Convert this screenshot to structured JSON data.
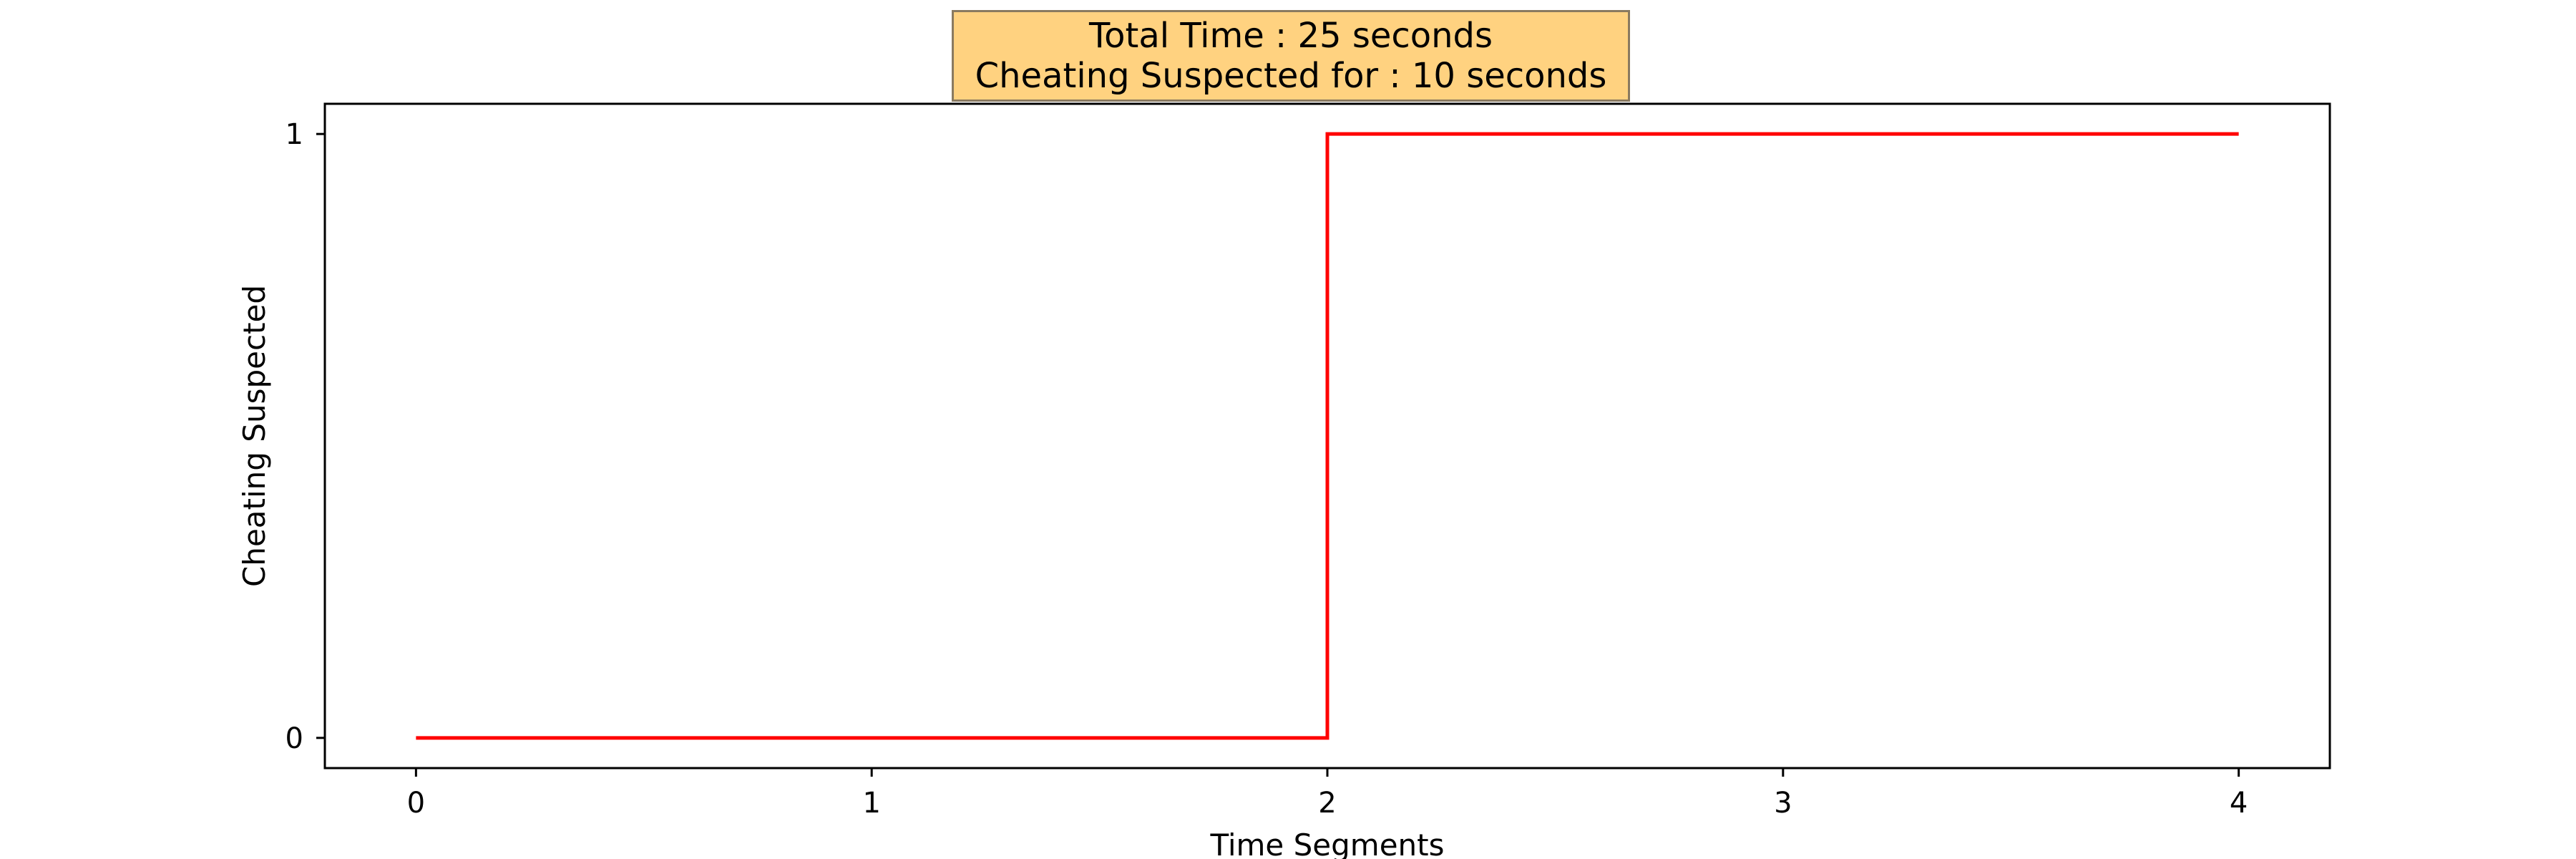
{
  "chart_data": {
    "type": "line",
    "step": "post",
    "title_lines": [
      "Total Time : 25 seconds",
      "Cheating Suspected for : 10 seconds"
    ],
    "xlabel": "Time Segments",
    "ylabel": "Cheating Suspected",
    "x": [
      0,
      1,
      2,
      3,
      4
    ],
    "series": [
      {
        "values": [
          0,
          0,
          1,
          1,
          1
        ],
        "color": "#ff0000"
      }
    ],
    "xticks": [
      0,
      1,
      2,
      3,
      4
    ],
    "yticks": [
      0,
      1
    ],
    "xlim": [
      -0.2,
      4.2
    ],
    "ylim": [
      -0.05,
      1.05
    ],
    "grid": false,
    "title_box_color": "#ffd280"
  }
}
